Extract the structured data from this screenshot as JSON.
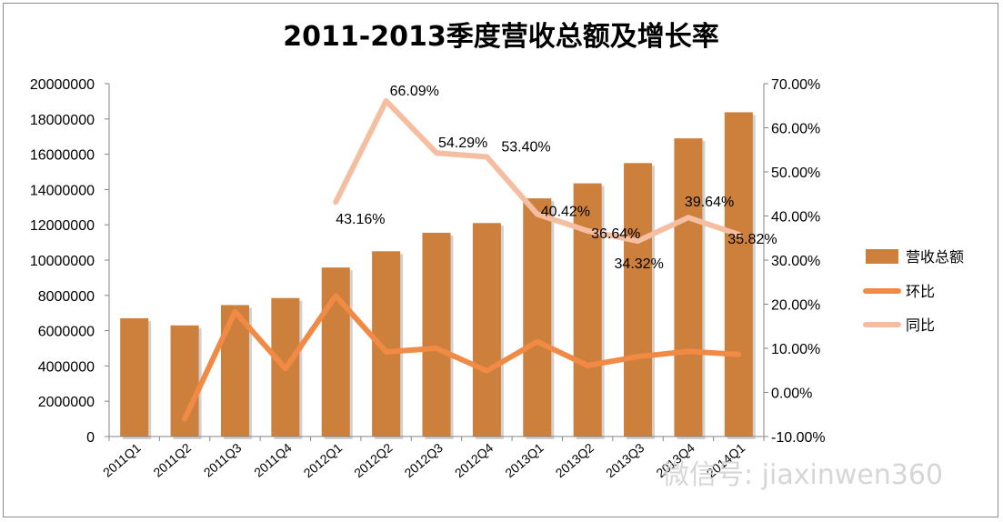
{
  "chart_data": {
    "type": "bar",
    "title": "2011-2013季度营收总额及增长率",
    "categories": [
      "2011Q1",
      "2011Q2",
      "2011Q3",
      "2011Q4",
      "2012Q1",
      "2012Q2",
      "2012Q3",
      "2012Q4",
      "2013Q1",
      "2013Q2",
      "2013Q3",
      "2013Q4",
      "2014Q1"
    ],
    "left_axis": {
      "ylim": [
        0,
        20000000
      ],
      "ticks": [
        "0",
        "2000000",
        "4000000",
        "6000000",
        "8000000",
        "10000000",
        "12000000",
        "14000000",
        "16000000",
        "18000000",
        "20000000"
      ]
    },
    "right_axis": {
      "ylim": [
        -10,
        70
      ],
      "ticks": [
        "-10.00%",
        "0.00%",
        "10.00%",
        "20.00%",
        "30.00%",
        "40.00%",
        "50.00%",
        "60.00%",
        "70.00%"
      ]
    },
    "series": [
      {
        "name": "营收总额",
        "kind": "bar",
        "axis": "left",
        "color": "#CD7F3C",
        "values": [
          6700000,
          6300000,
          7450000,
          7850000,
          9580000,
          10500000,
          11550000,
          12100000,
          13500000,
          14350000,
          15500000,
          16900000,
          18380000
        ]
      },
      {
        "name": "环比",
        "kind": "line",
        "axis": "right",
        "color": "#F08A45",
        "values": [
          null,
          -6.0,
          18.3,
          5.4,
          21.9,
          9.2,
          10.0,
          4.9,
          11.5,
          6.1,
          8.1,
          9.3,
          8.6
        ]
      },
      {
        "name": "同比",
        "kind": "line",
        "axis": "right",
        "color": "#F5BEA1",
        "values": [
          null,
          null,
          null,
          null,
          43.16,
          66.09,
          54.29,
          53.4,
          40.42,
          36.64,
          34.32,
          39.64,
          35.82
        ],
        "labels": [
          "",
          "",
          "",
          "",
          "43.16%",
          "66.09%",
          "54.29%",
          "53.40%",
          "40.42%",
          "36.64%",
          "34.32%",
          "39.64%",
          "35.82%"
        ]
      }
    ],
    "legend_position": "right"
  },
  "watermark": "微信号: jiaxinwen360"
}
